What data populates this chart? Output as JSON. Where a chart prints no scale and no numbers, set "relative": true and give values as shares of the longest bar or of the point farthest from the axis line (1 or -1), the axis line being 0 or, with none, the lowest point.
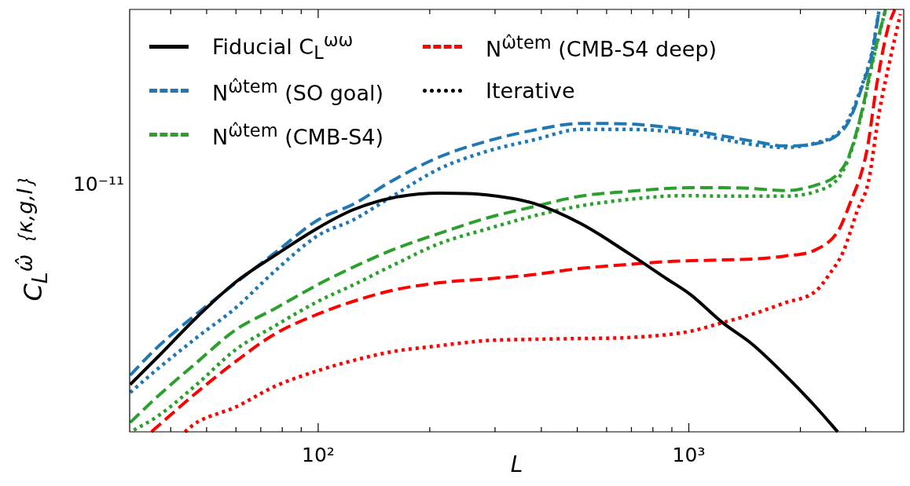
{
  "chart_data": {
    "type": "line",
    "xlabel": "L",
    "ylabel": "C$_{L}$$^{ω̂｛κ,g,I｝}$",
    "log": "x",
    "legend": "top left",
    "marker": "none",
    "relative": true,
    "annotations": [
      "10⁻¹¹"
    ],
    "xlim": [
      31,
      3800
    ],
    "xticks": [
      {
        "value": 40,
        "label": null
      },
      {
        "value": 50,
        "label": null
      },
      {
        "value": 60,
        "label": null
      },
      {
        "value": 70,
        "label": null
      },
      {
        "value": 80,
        "label": null
      },
      {
        "value": 90,
        "label": null
      },
      {
        "value": 100,
        "label": "10²"
      },
      {
        "value": 200,
        "label": null
      },
      {
        "value": 300,
        "label": null
      },
      {
        "value": 400,
        "label": null
      },
      {
        "value": 500,
        "label": null
      },
      {
        "value": 600,
        "label": null
      },
      {
        "value": 700,
        "label": null
      },
      {
        "value": 800,
        "label": null
      },
      {
        "value": 900,
        "label": null
      },
      {
        "value": 1000,
        "label": "10³"
      },
      {
        "value": 2000,
        "label": null
      },
      {
        "value": 3000,
        "label": null
      }
    ],
    "series": [
      {
        "name": "Fiducial C$_{L}$$^{ωω}$",
        "color": "#000000",
        "line_style": "solid",
        "x": [
          31.1,
          36.9,
          47.0,
          60.0,
          76.5,
          100,
          124.5,
          158.8,
          212.6,
          285,
          381,
          511,
          684,
          873,
          1010,
          1227,
          1490,
          1811,
          2200,
          2522
        ],
        "values": [
          0.112,
          0.177,
          0.271,
          0.355,
          0.418,
          0.483,
          0.526,
          0.554,
          0.565,
          0.561,
          0.541,
          0.493,
          0.424,
          0.362,
          0.325,
          0.26,
          0.206,
          0.136,
          0.059,
          0
        ]
      },
      {
        "name": "N$^{ω̂tem}$ (SO goal)",
        "color": "#1f77b4",
        "line_style": "dashed",
        "x": [
          31.1,
          36.9,
          47.0,
          60.0,
          76.5,
          100,
          124.5,
          158.8,
          212.6,
          285,
          381,
          511,
          684,
          873,
          1010,
          1227,
          1490,
          1811,
          2200,
          2522,
          2698,
          2950,
          3115,
          3264
        ],
        "values": [
          0.134,
          0.201,
          0.279,
          0.353,
          0.424,
          0.502,
          0.539,
          0.595,
          0.651,
          0.688,
          0.714,
          0.73,
          0.729,
          0.721,
          0.714,
          0.701,
          0.688,
          0.677,
          0.682,
          0.703,
          0.734,
          0.823,
          0.892,
          1
        ]
      },
      {
        "color": "#1f77b4",
        "line_style": "dotted",
        "x": [
          31.1,
          36.9,
          47.0,
          60.0,
          76.5,
          100,
          124.5,
          158.8,
          212.6,
          285,
          381,
          511,
          684,
          873,
          1010,
          1227,
          1490,
          1811,
          2200,
          2522,
          2698,
          2950,
          3115,
          3264
        ],
        "values": [
          0.093,
          0.149,
          0.223,
          0.294,
          0.381,
          0.465,
          0.502,
          0.558,
          0.623,
          0.664,
          0.691,
          0.716,
          0.716,
          0.712,
          0.706,
          0.693,
          0.68,
          0.673,
          0.684,
          0.706,
          0.74,
          0.827,
          0.896,
          1
        ]
      },
      {
        "name": "N$^{ω̂tem}$ (CMB-S4)",
        "color": "#2ca02c",
        "line_style": "dashed",
        "x": [
          31.1,
          36.9,
          47.0,
          60.0,
          76.5,
          100,
          124.5,
          158.8,
          212.6,
          285,
          381,
          511,
          684,
          873,
          1010,
          1227,
          1490,
          1811,
          2200,
          2522,
          2698,
          2950,
          3115,
          3394
        ],
        "values": [
          0.022,
          0.084,
          0.164,
          0.242,
          0.292,
          0.349,
          0.39,
          0.431,
          0.47,
          0.506,
          0.533,
          0.558,
          0.569,
          0.576,
          0.578,
          0.578,
          0.576,
          0.571,
          0.584,
          0.61,
          0.651,
          0.77,
          0.87,
          1
        ]
      },
      {
        "color": "#2ca02c",
        "line_style": "dotted",
        "x": [
          31.8,
          36.9,
          47.0,
          60.0,
          76.5,
          100,
          124.5,
          158.8,
          212.6,
          285,
          381,
          511,
          684,
          873,
          1010,
          1227,
          1490,
          1811,
          2200,
          2522,
          2698,
          2950,
          3115,
          3394
        ],
        "values": [
          0.004,
          0.037,
          0.112,
          0.195,
          0.251,
          0.309,
          0.348,
          0.394,
          0.446,
          0.48,
          0.511,
          0.535,
          0.55,
          0.558,
          0.559,
          0.558,
          0.558,
          0.558,
          0.569,
          0.599,
          0.647,
          0.766,
          0.866,
          1
        ]
      },
      {
        "name": "N$^{ω̂tem}$ (CMB-S4 deep)",
        "color": "#ff0000",
        "line_style": "dashed",
        "x": [
          35.5,
          36.9,
          47.0,
          60.0,
          76.5,
          100,
          124.5,
          158.8,
          212.6,
          285,
          381,
          511,
          684,
          873,
          1010,
          1227,
          1490,
          1811,
          2200,
          2522,
          2698,
          3020,
          3215,
          3443,
          3595
        ],
        "values": [
          0,
          0.013,
          0.093,
          0.167,
          0.232,
          0.279,
          0.309,
          0.335,
          0.353,
          0.362,
          0.372,
          0.387,
          0.396,
          0.403,
          0.405,
          0.407,
          0.409,
          0.416,
          0.431,
          0.474,
          0.532,
          0.664,
          0.823,
          0.955,
          1
        ]
      },
      {
        "color": "#ff0000",
        "line_style": "dotted",
        "x": [
          43.7,
          47.0,
          60.0,
          76.5,
          100,
          124.5,
          158.8,
          212.6,
          285,
          381,
          511,
          684,
          873,
          1010,
          1227,
          1490,
          1811,
          2200,
          2390,
          2608,
          2850,
          3050,
          3264,
          3510,
          3722
        ],
        "values": [
          0,
          0.022,
          0.059,
          0.108,
          0.145,
          0.169,
          0.19,
          0.204,
          0.216,
          0.219,
          0.221,
          0.223,
          0.23,
          0.238,
          0.258,
          0.279,
          0.305,
          0.333,
          0.372,
          0.426,
          0.524,
          0.591,
          0.757,
          0.89,
          0.989
        ]
      },
      {
        "name": "Iterative",
        "color": "#000000",
        "line_style": "dotted"
      }
    ]
  }
}
